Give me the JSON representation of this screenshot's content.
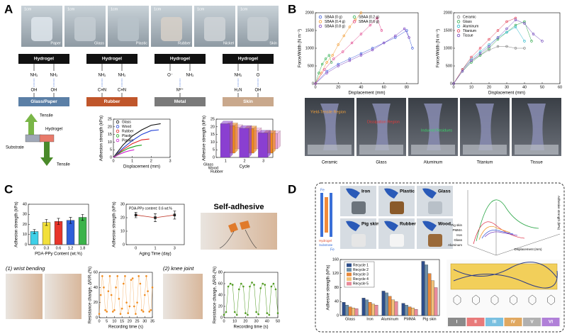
{
  "labels": [
    "A",
    "B",
    "C",
    "D"
  ],
  "a_photos": [
    "Paper",
    "Glass",
    "Plastic",
    "Rubber",
    "Nickel",
    "Skin"
  ],
  "a_scale": "1cm",
  "a_schemes": [
    {
      "title": "Hydrogel",
      "groups": [
        "NH₂",
        "NH₂"
      ],
      "sub": [
        "OH",
        "OH"
      ],
      "substrate": "Glass/Paper",
      "color": "#5b7fa6"
    },
    {
      "title": "Hydrogel",
      "groups": [
        "NH₂",
        "NH₂"
      ],
      "sub": [
        "C≡N",
        "C≡N"
      ],
      "substrate": "Rubber",
      "color": "#c0562b"
    },
    {
      "title": "Hydrogel",
      "groups": [
        "O⁻",
        "NH₂"
      ],
      "sub": [
        "M²⁺"
      ],
      "substrate": "Metal",
      "color": "#7a7a7a"
    },
    {
      "title": "Hydrogel",
      "groups": [
        "NH₂",
        "O"
      ],
      "sub": [
        "H₂N",
        "OH"
      ],
      "substrate": "Skin",
      "color": "#c9a88c"
    }
  ],
  "a_tensile": [
    "Tensile",
    "Hydrogel",
    "Substrate",
    "Tensile"
  ],
  "b_photos": [
    "Ceramic",
    "Glass",
    "Aluminum",
    "Titanium",
    "Tissue"
  ],
  "b_notes": [
    "Yield-Tensile Region",
    "Dissipation Region",
    "Induced Residues"
  ],
  "c_title": "Self-adhesive",
  "c_captions": [
    "(1) wrist bending",
    "(2) knee joint"
  ],
  "d_scheme": [
    "Fe",
    "Hydrogel",
    "Substrate",
    "Fe"
  ],
  "d_photos": [
    "Iron",
    "Plastic",
    "Glass",
    "Pig skin",
    "Rubber",
    "Wood"
  ],
  "d_3d": {
    "materials": [
      "Pig skin",
      "PMMA",
      "Iron",
      "Glass",
      "Aluminum"
    ],
    "xlabel": "Displacement (mm)",
    "ylabel": "Adhesive strength (kPa)"
  },
  "d_modes": [
    "I",
    "II",
    "III",
    "IV",
    "V",
    "VI"
  ],
  "chart_data": [
    {
      "type": "line",
      "xlabel": "Displacement (mm)",
      "ylabel": "Adhesion strength (kPa)",
      "xlim": [
        0,
        3
      ],
      "xticks": [
        0,
        1,
        2,
        3
      ],
      "ylim": [
        0,
        25
      ],
      "yticks": [
        0,
        5,
        10,
        15,
        20,
        25
      ],
      "series": [
        {
          "name": "Glass",
          "color": "#111111",
          "x": [
            0,
            0.5,
            1,
            1.5,
            2,
            2.5
          ],
          "values": [
            0,
            8,
            14,
            18,
            21,
            22
          ]
        },
        {
          "name": "Wood",
          "color": "#1f3fd6",
          "x": [
            0,
            0.5,
            1,
            1.5,
            2,
            2.4
          ],
          "values": [
            0,
            6,
            11,
            15,
            17.5,
            18
          ]
        },
        {
          "name": "Rubber",
          "color": "#e02020",
          "x": [
            0,
            0.5,
            1,
            1.5,
            1.9
          ],
          "values": [
            0,
            5,
            9,
            11.5,
            12
          ]
        },
        {
          "name": "Plastic",
          "color": "#1aa01a",
          "x": [
            0,
            0.4,
            0.8,
            1.2,
            1.5
          ],
          "values": [
            0,
            3.5,
            6,
            7.5,
            8
          ]
        },
        {
          "name": "Pigskin",
          "color": "#d020d0",
          "x": [
            0,
            0.3,
            0.6,
            0.9,
            1.1
          ],
          "values": [
            0,
            2,
            3.5,
            4.5,
            5
          ]
        }
      ]
    },
    {
      "type": "bar3d",
      "xlabel": "Cycle",
      "ylabel": "Adhesive strength (kPa)",
      "categories": [
        "1",
        "2",
        "3"
      ],
      "ylim": [
        0,
        25
      ],
      "yticks": [
        0,
        5,
        10,
        15,
        20,
        25
      ],
      "series": [
        {
          "name": "Glass",
          "color": "#8a3fd1",
          "values": [
            22,
            19,
            16
          ]
        },
        {
          "name": "Wood",
          "color": "#f08a1c",
          "values": [
            18,
            16,
            13
          ]
        },
        {
          "name": "Rubber",
          "color": "#e8a0d0",
          "values": [
            14,
            12,
            10
          ]
        }
      ]
    },
    {
      "type": "scatter",
      "xlabel": "Displacement (mm)",
      "ylabel": "Force/Width (N m⁻¹)",
      "xlim": [
        0,
        90
      ],
      "xticks": [
        0,
        20,
        40,
        60,
        80
      ],
      "ylim": [
        0,
        2000
      ],
      "yticks": [
        0,
        500,
        1000,
        1500,
        2000
      ],
      "series": [
        {
          "name": "SBAA (0 g)",
          "color": "#3d5bd9",
          "x": [
            0,
            10,
            20,
            30,
            40,
            50,
            60,
            70,
            80,
            85
          ],
          "values": [
            0,
            350,
            550,
            700,
            850,
            1000,
            1150,
            1300,
            1500,
            1000
          ]
        },
        {
          "name": "SBAA (0.2 g)",
          "color": "#2fae4f",
          "x": [
            0,
            3,
            6,
            9,
            12,
            14
          ],
          "values": [
            0,
            300,
            550,
            700,
            800,
            600
          ]
        },
        {
          "name": "SBAA (0.4 g)",
          "color": "#f29a2e",
          "x": [
            0,
            5,
            10,
            15,
            20,
            25,
            30,
            35,
            40
          ],
          "values": [
            0,
            300,
            600,
            800,
            1100,
            1350,
            1600,
            1800,
            2000
          ]
        },
        {
          "name": "SBAA (0.6 g)",
          "color": "#e0408a",
          "x": [
            0,
            8,
            16,
            24,
            32,
            40,
            48,
            54,
            58
          ],
          "values": [
            0,
            400,
            700,
            900,
            1150,
            1400,
            1650,
            1850,
            1500
          ]
        },
        {
          "name": "SBAA (0.8 g)",
          "color": "#7a3fbf",
          "x": [
            0,
            10,
            20,
            30,
            40,
            50,
            60,
            70,
            78,
            82
          ],
          "values": [
            0,
            300,
            500,
            650,
            800,
            950,
            1150,
            1350,
            1550,
            1300
          ]
        }
      ]
    },
    {
      "type": "scatter",
      "xlabel": "Displacement (mm)",
      "ylabel": "Force/Width (N m⁻¹)",
      "xlim": [
        0,
        60
      ],
      "xticks": [
        0,
        10,
        20,
        30,
        40,
        50,
        60
      ],
      "ylim": [
        0,
        2000
      ],
      "yticks": [
        0,
        500,
        1000,
        1500,
        2000
      ],
      "series": [
        {
          "name": "Ceramic",
          "color": "#7f7f7f",
          "x": [
            0,
            5,
            10,
            15,
            20,
            25,
            30,
            35,
            40
          ],
          "values": [
            0,
            400,
            650,
            800,
            950,
            1050,
            1050,
            1000,
            1000
          ]
        },
        {
          "name": "Glass",
          "color": "#2ea84a",
          "x": [
            0,
            5,
            10,
            15,
            20,
            25,
            30,
            35,
            40,
            44
          ],
          "values": [
            0,
            350,
            600,
            800,
            1000,
            1250,
            1450,
            1650,
            1750,
            1200
          ]
        },
        {
          "name": "Aluminum",
          "color": "#21b5c9",
          "x": [
            0,
            5,
            10,
            15,
            20,
            25,
            30,
            35,
            40
          ],
          "values": [
            0,
            400,
            700,
            900,
            1100,
            1300,
            1450,
            1600,
            1200
          ]
        },
        {
          "name": "Titanium",
          "color": "#e0344a",
          "x": [
            0,
            5,
            10,
            15,
            20,
            25,
            30,
            35
          ],
          "values": [
            0,
            400,
            750,
            1000,
            1250,
            1500,
            1750,
            1850
          ]
        },
        {
          "name": "Tissue",
          "color": "#6a3fb8",
          "x": [
            0,
            5,
            10,
            15,
            20,
            25,
            30,
            35,
            40,
            45,
            50
          ],
          "values": [
            0,
            350,
            650,
            850,
            1050,
            1300,
            1550,
            1800,
            1700,
            1400,
            1200
          ]
        }
      ]
    },
    {
      "type": "bar",
      "xlabel": "PDA-PPy Content (wt.%)",
      "ylabel": "Adhesion strength (kPa)",
      "categories": [
        "0",
        "0.3",
        "0.6",
        "1.2",
        "1.8"
      ],
      "values": [
        13,
        22,
        23,
        24,
        27
      ],
      "errors": [
        2,
        3,
        3,
        3,
        3
      ],
      "colors": [
        "#3fd0e8",
        "#f2e03a",
        "#e8352a",
        "#2f5fd8",
        "#3cb34a"
      ],
      "ylim": [
        0,
        40
      ],
      "yticks": [
        0,
        10,
        20,
        30,
        40
      ]
    },
    {
      "type": "errorline",
      "xlabel": "Aging Time (day)",
      "ylabel": "Adhesion strength (kPa)",
      "annotation": "PDA-PPy content: 0.6 wt.%",
      "categories": [
        "0",
        "1",
        "3"
      ],
      "values": [
        22,
        20,
        22
      ],
      "errors": [
        2,
        3,
        3
      ],
      "color": "#c0392b",
      "ylim": [
        0,
        30
      ],
      "yticks": [
        0,
        10,
        20,
        30
      ]
    },
    {
      "type": "scatter",
      "xlabel": "Recording time (s)",
      "ylabel": "Resistance change, ΔR/R₀(%)",
      "xlim": [
        0,
        35
      ],
      "xticks": [
        0,
        5,
        10,
        15,
        20,
        25,
        30,
        35
      ],
      "ylim": [
        0,
        60
      ],
      "yticks": [
        0,
        20,
        40,
        60
      ],
      "series": [
        {
          "color": "#f08a1c",
          "x": [
            0,
            1,
            2,
            3,
            4,
            5,
            6,
            7,
            8,
            9,
            10,
            11,
            12,
            13,
            14,
            15,
            16,
            17,
            18,
            19,
            20,
            21,
            22,
            23,
            24,
            25,
            26,
            27,
            28,
            29,
            30,
            31,
            32,
            33,
            34,
            35
          ],
          "values": [
            5,
            30,
            55,
            40,
            10,
            8,
            35,
            55,
            30,
            8,
            10,
            40,
            55,
            25,
            5,
            12,
            45,
            55,
            20,
            6,
            15,
            50,
            52,
            15,
            5,
            20,
            55,
            45,
            10,
            8,
            30,
            55,
            35,
            8,
            10,
            40
          ]
        }
      ]
    },
    {
      "type": "scatter",
      "xlabel": "Recording time (s)",
      "ylabel": "Resistance change, ΔR/R₀(%)",
      "xlim": [
        0,
        50
      ],
      "xticks": [
        0,
        10,
        20,
        30,
        40,
        50
      ],
      "ylim": [
        0,
        80
      ],
      "yticks": [
        0,
        20,
        40,
        60,
        80
      ],
      "series": [
        {
          "color": "#4f9a1f",
          "x": [
            0,
            2,
            4,
            6,
            8,
            10,
            12,
            14,
            16,
            18,
            20,
            22,
            24,
            26,
            28,
            30,
            32,
            34,
            36,
            38,
            40,
            42,
            44,
            46,
            48,
            50
          ],
          "values": [
            5,
            10,
            55,
            60,
            58,
            10,
            5,
            50,
            60,
            55,
            8,
            5,
            55,
            62,
            58,
            10,
            6,
            52,
            60,
            58,
            8,
            5,
            55,
            60,
            50,
            8
          ]
        }
      ]
    },
    {
      "type": "grouped_bar",
      "ylabel": "Adhesive strength (kPa)",
      "categories": [
        "Glass",
        "Iron",
        "Aluminum",
        "PMMA",
        "Pig skin"
      ],
      "ylim": [
        0,
        160
      ],
      "yticks": [
        0,
        40,
        80,
        120,
        160
      ],
      "series": [
        {
          "name": "Recycle 1",
          "color": "#2d4d8a",
          "values": [
            38,
            50,
            70,
            35,
            155
          ]
        },
        {
          "name": "Recycle 2",
          "color": "#6f8fa8",
          "values": [
            30,
            45,
            65,
            30,
            145
          ]
        },
        {
          "name": "Recycle 3",
          "color": "#e8873a",
          "values": [
            25,
            38,
            55,
            25,
            120
          ]
        },
        {
          "name": "Recycle 4",
          "color": "#f2c27a",
          "values": [
            22,
            33,
            45,
            22,
            100
          ]
        },
        {
          "name": "Recycle 5",
          "color": "#e98a9a",
          "values": [
            20,
            30,
            40,
            18,
            80
          ]
        }
      ]
    }
  ]
}
